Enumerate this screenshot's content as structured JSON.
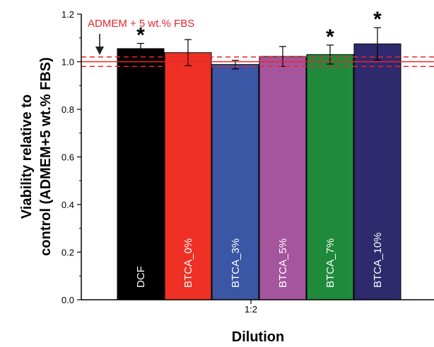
{
  "chart_data": {
    "type": "bar",
    "xlabel": "Dilution",
    "ylabel_line1": "Viability relative to",
    "ylabel_line2": "control (ADMEM+5 wt.% FBS)",
    "ylim": [
      0,
      1.2
    ],
    "yticks": [
      0.0,
      0.2,
      0.4,
      0.6,
      0.8,
      1.0,
      1.2
    ],
    "ytick_labels": [
      "0.0",
      "0.2",
      "0.4",
      "0.6",
      "0.8",
      "1.0",
      "1.2"
    ],
    "x_category_label": "1:2",
    "bars": [
      {
        "label": "DCF",
        "value": 1.055,
        "error": 0.022,
        "color": "#000000",
        "star": true
      },
      {
        "label": "BTCA_0%",
        "value": 1.038,
        "error": 0.055,
        "color": "#ee3124",
        "star": false
      },
      {
        "label": "BTCA_3%",
        "value": 0.988,
        "error": 0.018,
        "color": "#3a56a5",
        "star": false
      },
      {
        "label": "BTCA_5%",
        "value": 1.022,
        "error": 0.042,
        "color": "#a4559e",
        "star": false
      },
      {
        "label": "BTCA_7%",
        "value": 1.03,
        "error": 0.04,
        "color": "#1f8a3c",
        "star": true
      },
      {
        "label": "BTCA_10%",
        "value": 1.075,
        "error": 0.068,
        "color": "#2e2a6e",
        "star": true
      }
    ],
    "star_symbol": "*",
    "reference": {
      "label": "ADMEM + 5 wt.% FBS",
      "value": 1.0,
      "band": [
        0.98,
        1.02
      ],
      "color": "#e8262b"
    }
  }
}
